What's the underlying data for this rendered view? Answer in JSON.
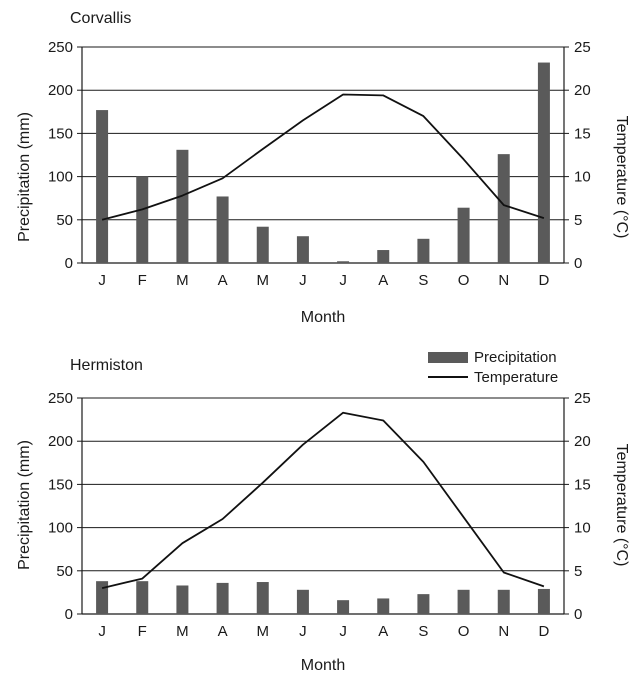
{
  "chart_data": [
    {
      "type": "bar",
      "title": "Corvallis",
      "xlabel": "Month",
      "ylabel": "Precipitation (mm)",
      "y2label": "Temperature (°C)",
      "categories": [
        "J",
        "F",
        "M",
        "A",
        "M",
        "J",
        "J",
        "A",
        "S",
        "O",
        "N",
        "D"
      ],
      "ylim": [
        0,
        250
      ],
      "yticks": [
        0,
        50,
        100,
        150,
        200,
        250
      ],
      "y2lim": [
        0,
        25
      ],
      "y2ticks": [
        0,
        5,
        10,
        15,
        20,
        25
      ],
      "grid": true,
      "colors": {
        "bar": "#5a5a5a",
        "line": "#111111",
        "grid": "#1a1a1a"
      },
      "series": [
        {
          "name": "Precipitation",
          "kind": "bar",
          "axis": "left",
          "values": [
            177,
            100,
            131,
            77,
            42,
            31,
            2,
            15,
            28,
            64,
            126,
            232
          ]
        },
        {
          "name": "Temperature",
          "kind": "line",
          "axis": "right",
          "values": [
            5.0,
            6.2,
            7.8,
            9.8,
            13.2,
            16.5,
            19.5,
            19.4,
            17.0,
            12.0,
            6.7,
            5.2
          ]
        }
      ]
    },
    {
      "type": "bar",
      "title": "Hermiston",
      "xlabel": "Month",
      "ylabel": "Precipitation (mm)",
      "y2label": "Temperature (°C)",
      "categories": [
        "J",
        "F",
        "M",
        "A",
        "M",
        "J",
        "J",
        "A",
        "S",
        "O",
        "N",
        "D"
      ],
      "ylim": [
        0,
        250
      ],
      "yticks": [
        0,
        50,
        100,
        150,
        200,
        250
      ],
      "y2lim": [
        0,
        25
      ],
      "y2ticks": [
        0,
        5,
        10,
        15,
        20,
        25
      ],
      "grid": true,
      "legend": {
        "placement": "top-right",
        "items": [
          "Precipitation",
          "Temperature"
        ]
      },
      "colors": {
        "bar": "#5a5a5a",
        "line": "#111111",
        "grid": "#1a1a1a"
      },
      "series": [
        {
          "name": "Precipitation",
          "kind": "bar",
          "axis": "left",
          "values": [
            38,
            38,
            33,
            36,
            37,
            28,
            16,
            18,
            23,
            28,
            28,
            29
          ]
        },
        {
          "name": "Temperature",
          "kind": "line",
          "axis": "right",
          "values": [
            3.0,
            4.1,
            8.2,
            11.0,
            15.2,
            19.6,
            23.3,
            22.4,
            17.6,
            11.2,
            4.8,
            3.2
          ]
        }
      ]
    }
  ]
}
